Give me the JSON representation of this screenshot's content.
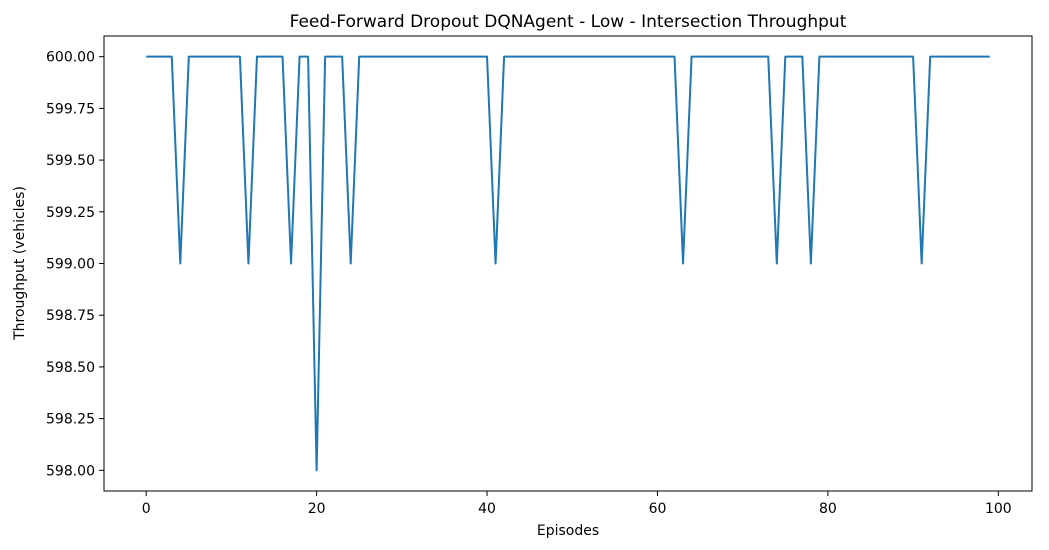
{
  "chart_data": {
    "type": "line",
    "title": "Feed-Forward Dropout DQNAgent - Low - Intersection Throughput",
    "xlabel": "Episodes",
    "ylabel": "Throughput (vehicles)",
    "xlim": [
      -4.95,
      103.95
    ],
    "ylim": [
      597.9,
      600.1
    ],
    "xticks": [
      0,
      20,
      40,
      60,
      80,
      100
    ],
    "yticks": [
      598.0,
      598.25,
      598.5,
      598.75,
      599.0,
      599.25,
      599.5,
      599.75,
      600.0
    ],
    "grid": false,
    "line_color": "#1f77b4",
    "series": [
      {
        "x": [
          0,
          1,
          2,
          3,
          4,
          5,
          6,
          7,
          8,
          9,
          10,
          11,
          12,
          13,
          14,
          15,
          16,
          17,
          18,
          19,
          20,
          21,
          22,
          23,
          24,
          25,
          26,
          27,
          28,
          29,
          30,
          31,
          32,
          33,
          34,
          35,
          36,
          37,
          38,
          39,
          40,
          41,
          42,
          43,
          44,
          45,
          46,
          47,
          48,
          49,
          50,
          51,
          52,
          53,
          54,
          55,
          56,
          57,
          58,
          59,
          60,
          61,
          62,
          63,
          64,
          65,
          66,
          67,
          68,
          69,
          70,
          71,
          72,
          73,
          74,
          75,
          76,
          77,
          78,
          79,
          80,
          81,
          82,
          83,
          84,
          85,
          86,
          87,
          88,
          89,
          90,
          91,
          92,
          93,
          94,
          95,
          96,
          97,
          98,
          99
        ],
        "values": [
          600,
          600,
          600,
          600,
          599,
          600,
          600,
          600,
          600,
          600,
          600,
          600,
          599,
          600,
          600,
          600,
          600,
          599,
          600,
          600,
          598,
          600,
          600,
          600,
          599,
          600,
          600,
          600,
          600,
          600,
          600,
          600,
          600,
          600,
          600,
          600,
          600,
          600,
          600,
          600,
          600,
          599,
          600,
          600,
          600,
          600,
          600,
          600,
          600,
          600,
          600,
          600,
          600,
          600,
          600,
          600,
          600,
          600,
          600,
          600,
          600,
          600,
          600,
          599,
          600,
          600,
          600,
          600,
          600,
          600,
          600,
          600,
          600,
          600,
          599,
          600,
          600,
          600,
          599,
          600,
          600,
          600,
          600,
          600,
          600,
          600,
          600,
          600,
          600,
          600,
          600,
          599,
          600,
          600,
          600,
          600,
          600,
          600,
          600,
          600
        ]
      }
    ]
  }
}
